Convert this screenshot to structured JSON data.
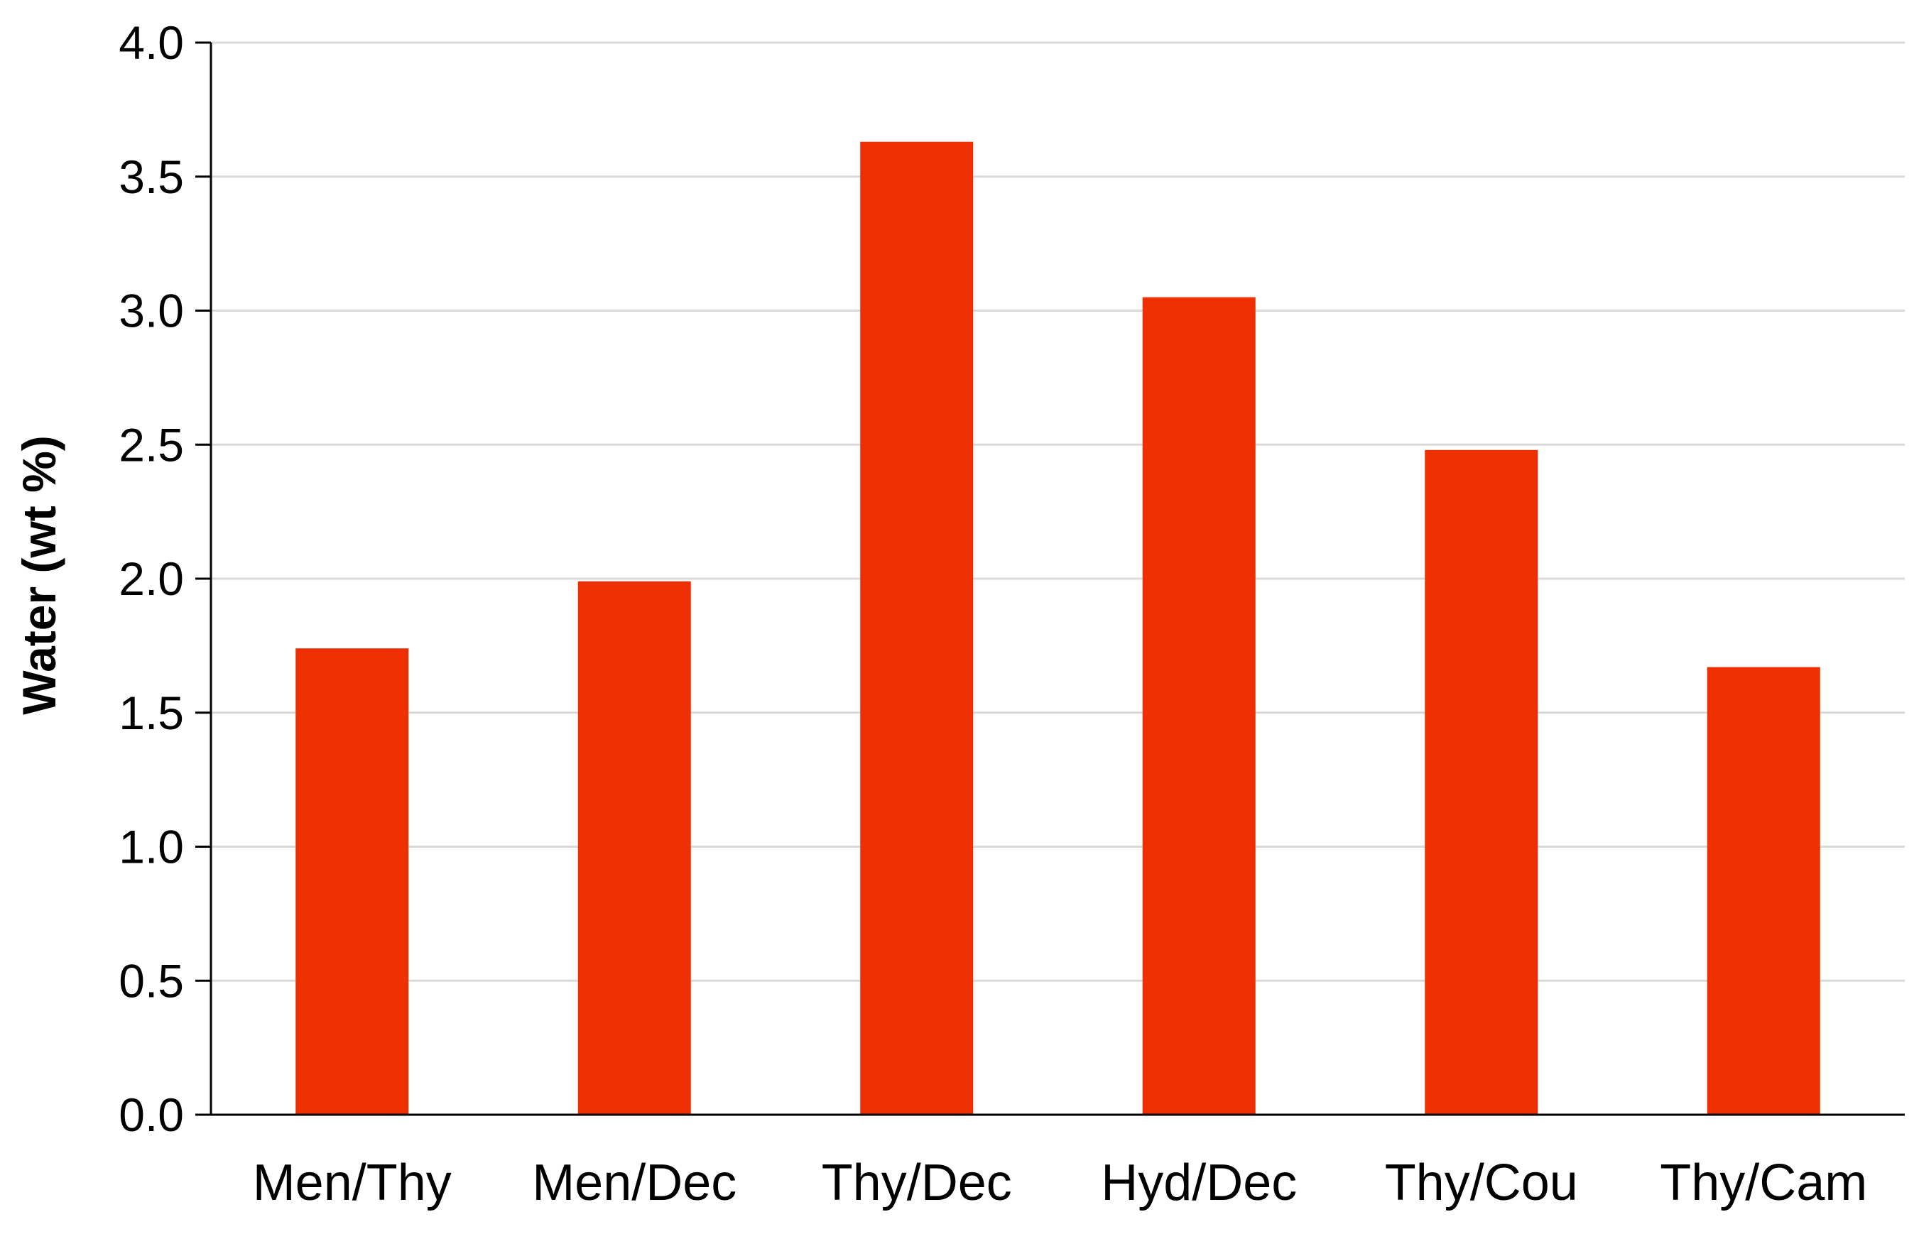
{
  "colors": {
    "bar": "#EE3000",
    "grid": "#D9D9D9",
    "axis": "#000000"
  },
  "chart_data": {
    "type": "bar",
    "title": "",
    "xlabel": "",
    "ylabel": "Water (wt %)",
    "ylim": [
      0,
      4.0
    ],
    "ytick_step": 0.5,
    "ytick_labels": [
      "0.0",
      "0.5",
      "1.0",
      "1.5",
      "2.0",
      "2.5",
      "3.0",
      "3.5",
      "4.0"
    ],
    "grid": true,
    "legend": "none",
    "categories": [
      "Men/Thy",
      "Men/Dec",
      "Thy/Dec",
      "Hyd/Dec",
      "Thy/Cou",
      "Thy/Cam"
    ],
    "values": [
      1.74,
      1.99,
      3.63,
      3.05,
      2.48,
      1.67
    ]
  }
}
